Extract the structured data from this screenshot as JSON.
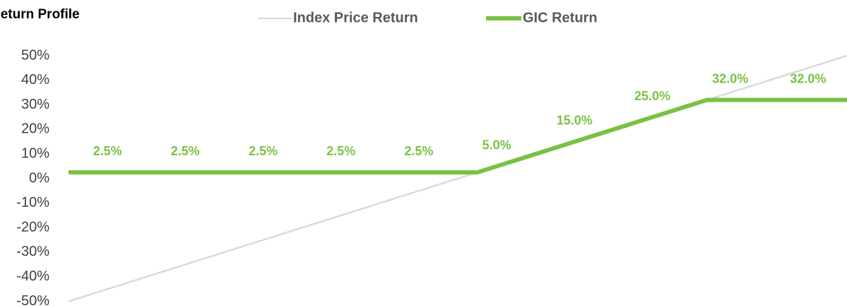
{
  "chart_data": {
    "type": "line",
    "title": "Return Profile",
    "xlim": [
      -50,
      50
    ],
    "ylim": [
      -50,
      50
    ],
    "yticks": [
      {
        "value": -50,
        "label": "-50%"
      },
      {
        "value": -40,
        "label": "-40%"
      },
      {
        "value": -30,
        "label": "-30%"
      },
      {
        "value": -20,
        "label": "-20%"
      },
      {
        "value": -10,
        "label": "-10%"
      },
      {
        "value": 0,
        "label": "0%"
      },
      {
        "value": 10,
        "label": "10%"
      },
      {
        "value": 20,
        "label": "20%"
      },
      {
        "value": 30,
        "label": "30%"
      },
      {
        "value": 40,
        "label": "40%"
      },
      {
        "value": 50,
        "label": "50%"
      }
    ],
    "legend": "top",
    "series": [
      {
        "name": "Index Price Return",
        "color": "#d9d9d9",
        "x": [
          -50,
          50
        ],
        "values": [
          -50,
          50
        ]
      },
      {
        "name": "GIC Return",
        "color": "#7ac143",
        "x": [
          -50,
          2.5,
          32,
          50
        ],
        "values": [
          2.5,
          2.5,
          32,
          32
        ]
      }
    ],
    "data_labels": {
      "color": "#7ac143",
      "x": [
        -45,
        -35,
        -25,
        -15,
        -5,
        5,
        15,
        25,
        35,
        45
      ],
      "values": [
        2.5,
        2.5,
        2.5,
        2.5,
        2.5,
        5,
        15,
        25,
        32,
        32
      ],
      "value_labels": [
        "2.5%",
        "2.5%",
        "2.5%",
        "2.5%",
        "2.5%",
        "5.0%",
        "15.0%",
        "25.0%",
        "32.0%",
        "32.0%"
      ]
    }
  }
}
